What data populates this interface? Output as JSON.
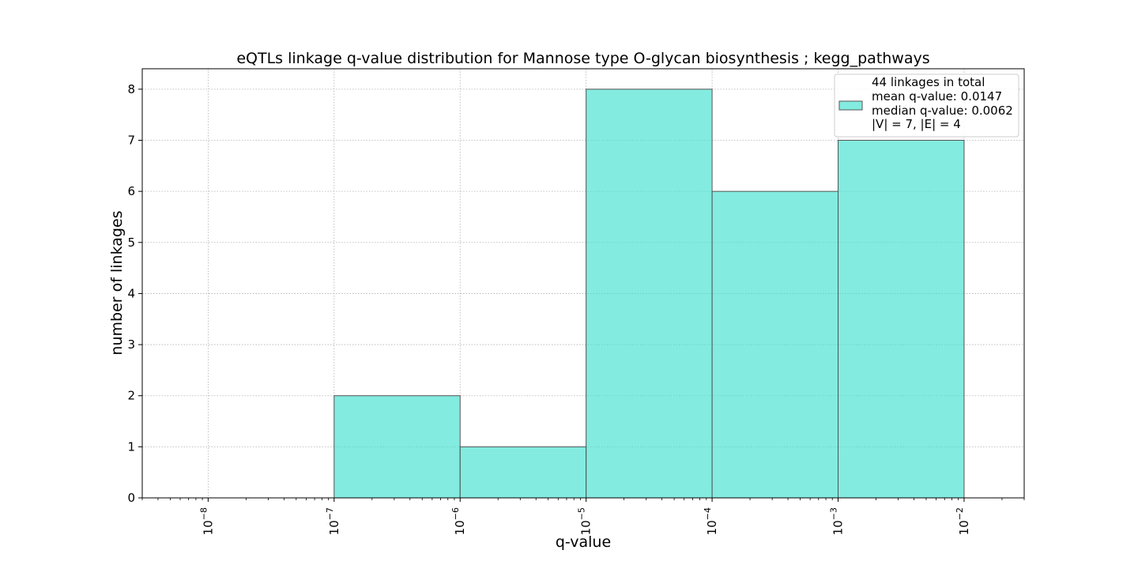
{
  "chart_data": {
    "type": "bar",
    "title": "eQTLs linkage q-value distribution for Mannose type O-glycan biosynthesis ; kegg_pathways",
    "xlabel": "q-value",
    "ylabel": "number of linkages",
    "x_scale": "log",
    "xlim": [
      3e-09,
      0.03
    ],
    "ylim": [
      0,
      8.4
    ],
    "x_ticks": [
      1e-08,
      1e-07,
      1e-06,
      1e-05,
      0.0001,
      0.001,
      0.01
    ],
    "x_tick_labels": [
      {
        "base": "10",
        "exp": "−8"
      },
      {
        "base": "10",
        "exp": "−7"
      },
      {
        "base": "10",
        "exp": "−6"
      },
      {
        "base": "10",
        "exp": "−5"
      },
      {
        "base": "10",
        "exp": "−4"
      },
      {
        "base": "10",
        "exp": "−3"
      },
      {
        "base": "10",
        "exp": "−2"
      }
    ],
    "y_ticks": [
      0,
      1,
      2,
      3,
      4,
      5,
      6,
      7,
      8
    ],
    "grid": true,
    "legend_position": "top-right",
    "bar_color": "#40E0D0",
    "bins": [
      {
        "from": 1e-08,
        "to": 1e-07,
        "count": 0
      },
      {
        "from": 1e-07,
        "to": 1e-06,
        "count": 2
      },
      {
        "from": 1e-06,
        "to": 1e-05,
        "count": 1
      },
      {
        "from": 1e-05,
        "to": 0.0001,
        "count": 8
      },
      {
        "from": 0.0001,
        "to": 0.001,
        "count": 6
      },
      {
        "from": 0.001,
        "to": 0.01,
        "count": 7
      }
    ],
    "legend_lines": [
      "44 linkages in total",
      "mean q-value: 0.0147",
      "median q-value: 0.0062",
      "|V| = 7, |E| = 4"
    ]
  }
}
